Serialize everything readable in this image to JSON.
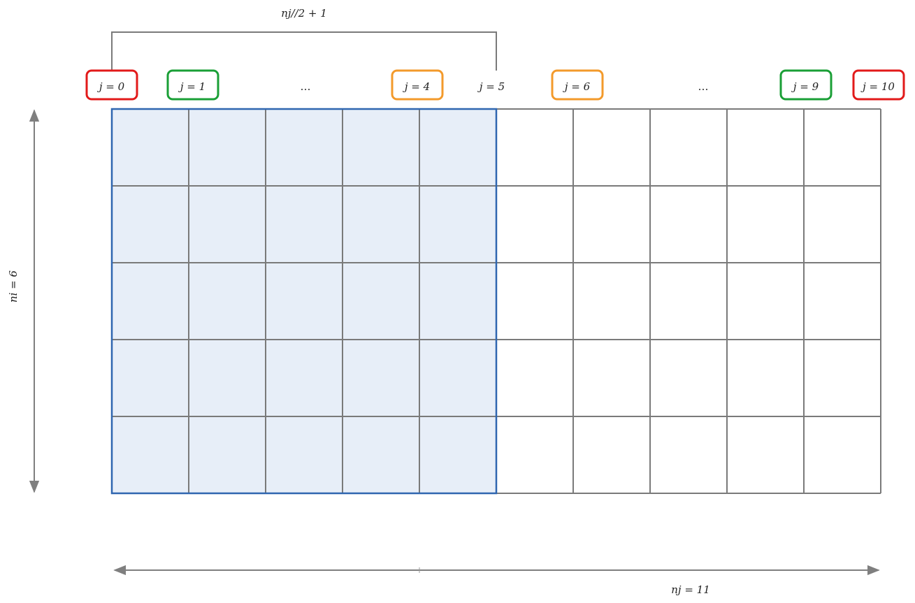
{
  "bracket_label": "nj//2 + 1",
  "column_labels": [
    {
      "text": "j = 0",
      "box": "red"
    },
    {
      "text": "j = 1",
      "box": "green"
    },
    {
      "text": "…",
      "box": null
    },
    {
      "text": "j = 4",
      "box": "orange"
    },
    {
      "text": "j = 5",
      "box": null
    },
    {
      "text": "j = 6",
      "box": "orange"
    },
    {
      "text": "…",
      "box": null
    },
    {
      "text": "j = 9",
      "box": "green"
    },
    {
      "text": "j = 10",
      "box": "red"
    }
  ],
  "rows_label": "ni = 6",
  "cols_label": "nj = 11",
  "grid": {
    "rows": 5,
    "columns": 10,
    "highlighted_columns": 5
  },
  "colors": {
    "red": "#e21a1a",
    "green": "#1a9f36",
    "orange": "#f39a2b",
    "highlight_fill": "#e7eef8",
    "highlight_border": "#2f66b0",
    "grid_line": "#7a7a7a",
    "arrow": "#7f7f7f"
  }
}
